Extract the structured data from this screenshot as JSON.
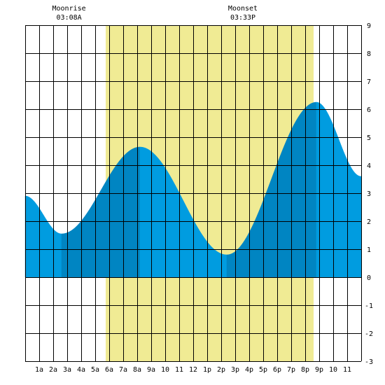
{
  "chart_data": {
    "type": "area",
    "x_tick_labels": [
      "1a",
      "2a",
      "3a",
      "4a",
      "5a",
      "6a",
      "7a",
      "8a",
      "9a",
      "10",
      "11",
      "12",
      "1p",
      "2p",
      "3p",
      "4p",
      "5p",
      "6p",
      "7p",
      "8p",
      "9p",
      "10",
      "11"
    ],
    "ylim": [
      -3,
      9
    ],
    "y_tick_labels": [
      "9",
      "8",
      "7",
      "6",
      "5",
      "4",
      "3",
      "2",
      "1",
      "0",
      "-1",
      "-2",
      "-3"
    ],
    "grid": true,
    "daylight_hours": [
      5.75,
      20.6
    ],
    "moon_events": [
      {
        "label": "Moonrise",
        "time": "03:08A",
        "hour": 3.13
      },
      {
        "label": "Moonset",
        "time": "03:33P",
        "hour": 15.55
      }
    ],
    "tide_extremes": [
      {
        "hour": 0.0,
        "height": 2.9
      },
      {
        "hour": 2.6,
        "height": 1.55
      },
      {
        "hour": 8.2,
        "height": 4.65
      },
      {
        "hour": 14.4,
        "height": 0.8
      },
      {
        "hour": 20.8,
        "height": 6.25
      },
      {
        "hour": 24.0,
        "height": 3.6
      }
    ],
    "series": [
      {
        "segment_hours": [
          0,
          2.6
        ],
        "color": "#009ce0"
      },
      {
        "segment_hours": [
          2.6,
          8.2
        ],
        "color": "#0085c2"
      },
      {
        "segment_hours": [
          8.2,
          14.4
        ],
        "color": "#009ce0"
      },
      {
        "segment_hours": [
          14.4,
          20.8
        ],
        "color": "#0085c2"
      },
      {
        "segment_hours": [
          20.8,
          24
        ],
        "color": "#009ce0"
      }
    ],
    "colors": {
      "daylight": "#f0eb94",
      "grid": "#000000",
      "background": "#ffffff"
    }
  }
}
